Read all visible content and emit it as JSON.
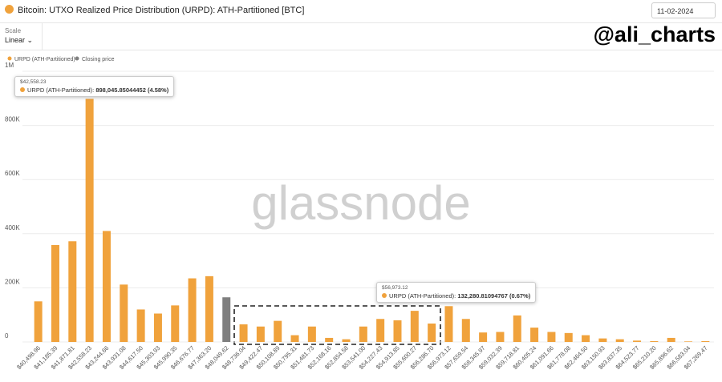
{
  "header": {
    "title": "Bitcoin: UTXO Realized Price Distribution (URPD): ATH-Partitioned [BTC]",
    "date": "11-02-2024",
    "scale_label": "Scale",
    "scale_value": "Linear",
    "watermark": "@ali_charts"
  },
  "chart_data": {
    "type": "bar",
    "watermark": "glassnode",
    "categories": [
      "$40,498.96",
      "$41,185.39",
      "$41,871.81",
      "$42,558.23",
      "$43,244.66",
      "$43,931.08",
      "$44,617.50",
      "$45,303.93",
      "$45,990.35",
      "$46,676.77",
      "$47,363.20",
      "$48,049.62",
      "$48,736.04",
      "$49,422.47",
      "$50,108.89",
      "$50,795.31",
      "$51,481.73",
      "$52,168.16",
      "$52,854.58",
      "$53,541.00",
      "$54,227.43",
      "$54,913.85",
      "$55,600.27",
      "$56,286.70",
      "$56,973.12",
      "$57,659.54",
      "$58,345.97",
      "$59,032.39",
      "$59,718.81",
      "$60,405.24",
      "$61,091.66",
      "$61,778.08",
      "$62,464.50",
      "$63,150.93",
      "$63,837.35",
      "$64,523.77",
      "$65,210.20",
      "$65,896.62",
      "$66,583.04",
      "$67,269.47"
    ],
    "series": [
      {
        "name": "URPD (ATH-Partitioned)",
        "color": "#f0a23c",
        "values": [
          150000,
          358000,
          372000,
          898045.85044452,
          410000,
          212000,
          120000,
          105000,
          135000,
          235000,
          243000,
          null,
          65000,
          57000,
          78000,
          25000,
          57000,
          15000,
          10000,
          57000,
          85000,
          80000,
          115000,
          68000,
          132280.81094767,
          85000,
          35000,
          37000,
          98000,
          53000,
          37000,
          33000,
          25000,
          13000,
          10000,
          5000,
          3000,
          15000,
          2000,
          3000
        ]
      },
      {
        "name": "Closing price",
        "color": "#7f7f7f",
        "values": [
          null,
          null,
          null,
          null,
          null,
          null,
          null,
          null,
          null,
          null,
          null,
          165000,
          null,
          null,
          null,
          null,
          null,
          null,
          null,
          null,
          null,
          null,
          null,
          null,
          null,
          null,
          null,
          null,
          null,
          null,
          null,
          null,
          null,
          null,
          null,
          null,
          null,
          null,
          null,
          null
        ]
      }
    ],
    "ylim": [
      0,
      1000000
    ],
    "yticks": [
      0,
      {
        "value": 200000,
        "label": "200K"
      },
      {
        "value": 400000,
        "label": "400K"
      },
      {
        "value": 600000,
        "label": "600K"
      },
      {
        "value": 800000,
        "label": "800K"
      },
      {
        "value": 1000000,
        "label": "1M"
      }
    ],
    "grid": true,
    "tooltips": [
      {
        "title": "$42,558.23",
        "label": "URPD (ATH-Partitioned):",
        "value": "898,045.85044452 (4.58%)"
      },
      {
        "title": "$56,973.12",
        "label": "URPD (ATH-Partitioned):",
        "value": "132,280.81094767 (0.67%)"
      }
    ]
  }
}
